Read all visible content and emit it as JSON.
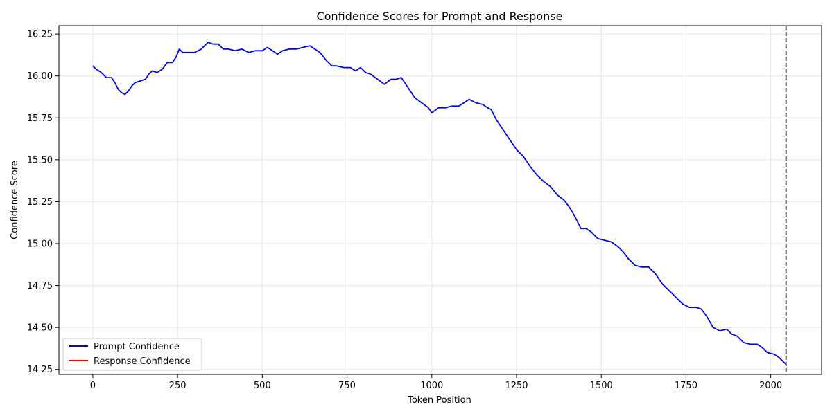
{
  "chart_data": {
    "type": "line",
    "title": "Confidence Scores for Prompt and Response",
    "xlabel": "Token Position",
    "ylabel": "Confidence Score",
    "xlim": [
      -100,
      2150
    ],
    "ylim": [
      14.22,
      16.3
    ],
    "xticks": [
      0,
      250,
      500,
      750,
      1000,
      1250,
      1500,
      1750,
      2000
    ],
    "xtick_labels": [
      "0",
      "250",
      "500",
      "750",
      "1000",
      "1250",
      "1500",
      "1750",
      "2000"
    ],
    "yticks": [
      14.25,
      14.5,
      14.75,
      15.0,
      15.25,
      15.5,
      15.75,
      16.0,
      16.25
    ],
    "ytick_labels": [
      "14.25",
      "14.50",
      "14.75",
      "15.00",
      "15.25",
      "15.50",
      "15.75",
      "16.00",
      "16.25"
    ],
    "grid": true,
    "legend_position": "lower-left",
    "vline_x": 2045,
    "series": [
      {
        "name": "Prompt Confidence",
        "color": "#0000ff",
        "x": [
          0,
          10,
          25,
          40,
          55,
          65,
          75,
          85,
          95,
          105,
          115,
          125,
          140,
          155,
          165,
          175,
          190,
          205,
          220,
          235,
          245,
          255,
          265,
          280,
          300,
          320,
          340,
          355,
          370,
          385,
          400,
          420,
          440,
          460,
          480,
          500,
          515,
          530,
          545,
          560,
          580,
          600,
          620,
          640,
          655,
          670,
          690,
          705,
          720,
          740,
          760,
          775,
          790,
          805,
          820,
          840,
          860,
          880,
          895,
          910,
          930,
          950,
          970,
          990,
          1000,
          1020,
          1040,
          1060,
          1080,
          1095,
          1110,
          1130,
          1150,
          1165,
          1175,
          1190,
          1210,
          1230,
          1250,
          1270,
          1290,
          1310,
          1330,
          1350,
          1370,
          1390,
          1405,
          1420,
          1440,
          1455,
          1470,
          1490,
          1510,
          1530,
          1550,
          1565,
          1580,
          1600,
          1620,
          1640,
          1660,
          1680,
          1700,
          1720,
          1740,
          1760,
          1780,
          1795,
          1810,
          1830,
          1850,
          1870,
          1885,
          1900,
          1920,
          1940,
          1960,
          1975,
          1990,
          2010,
          2025,
          2045
        ],
        "values": [
          16.06,
          16.04,
          16.02,
          15.99,
          15.99,
          15.96,
          15.92,
          15.9,
          15.89,
          15.91,
          15.94,
          15.96,
          15.97,
          15.98,
          16.01,
          16.03,
          16.02,
          16.04,
          16.08,
          16.08,
          16.11,
          16.16,
          16.14,
          16.14,
          16.14,
          16.16,
          16.2,
          16.19,
          16.19,
          16.16,
          16.16,
          16.15,
          16.16,
          16.14,
          16.15,
          16.15,
          16.17,
          16.15,
          16.13,
          16.15,
          16.16,
          16.16,
          16.17,
          16.18,
          16.16,
          16.14,
          16.09,
          16.06,
          16.06,
          16.05,
          16.05,
          16.03,
          16.05,
          16.02,
          16.01,
          15.98,
          15.95,
          15.98,
          15.98,
          15.99,
          15.93,
          15.87,
          15.84,
          15.81,
          15.78,
          15.81,
          15.81,
          15.82,
          15.82,
          15.84,
          15.86,
          15.84,
          15.83,
          15.81,
          15.8,
          15.74,
          15.68,
          15.62,
          15.56,
          15.52,
          15.46,
          15.41,
          15.37,
          15.34,
          15.29,
          15.26,
          15.22,
          15.17,
          15.09,
          15.09,
          15.07,
          15.03,
          15.02,
          15.01,
          14.98,
          14.95,
          14.91,
          14.87,
          14.86,
          14.86,
          14.82,
          14.76,
          14.72,
          14.68,
          14.64,
          14.62,
          14.62,
          14.61,
          14.57,
          14.5,
          14.48,
          14.49,
          14.46,
          14.45,
          14.41,
          14.4,
          14.4,
          14.38,
          14.35,
          14.34,
          14.32,
          14.28
        ]
      },
      {
        "name": "Response Confidence",
        "color": "#ff0000",
        "x": [],
        "values": []
      }
    ]
  }
}
